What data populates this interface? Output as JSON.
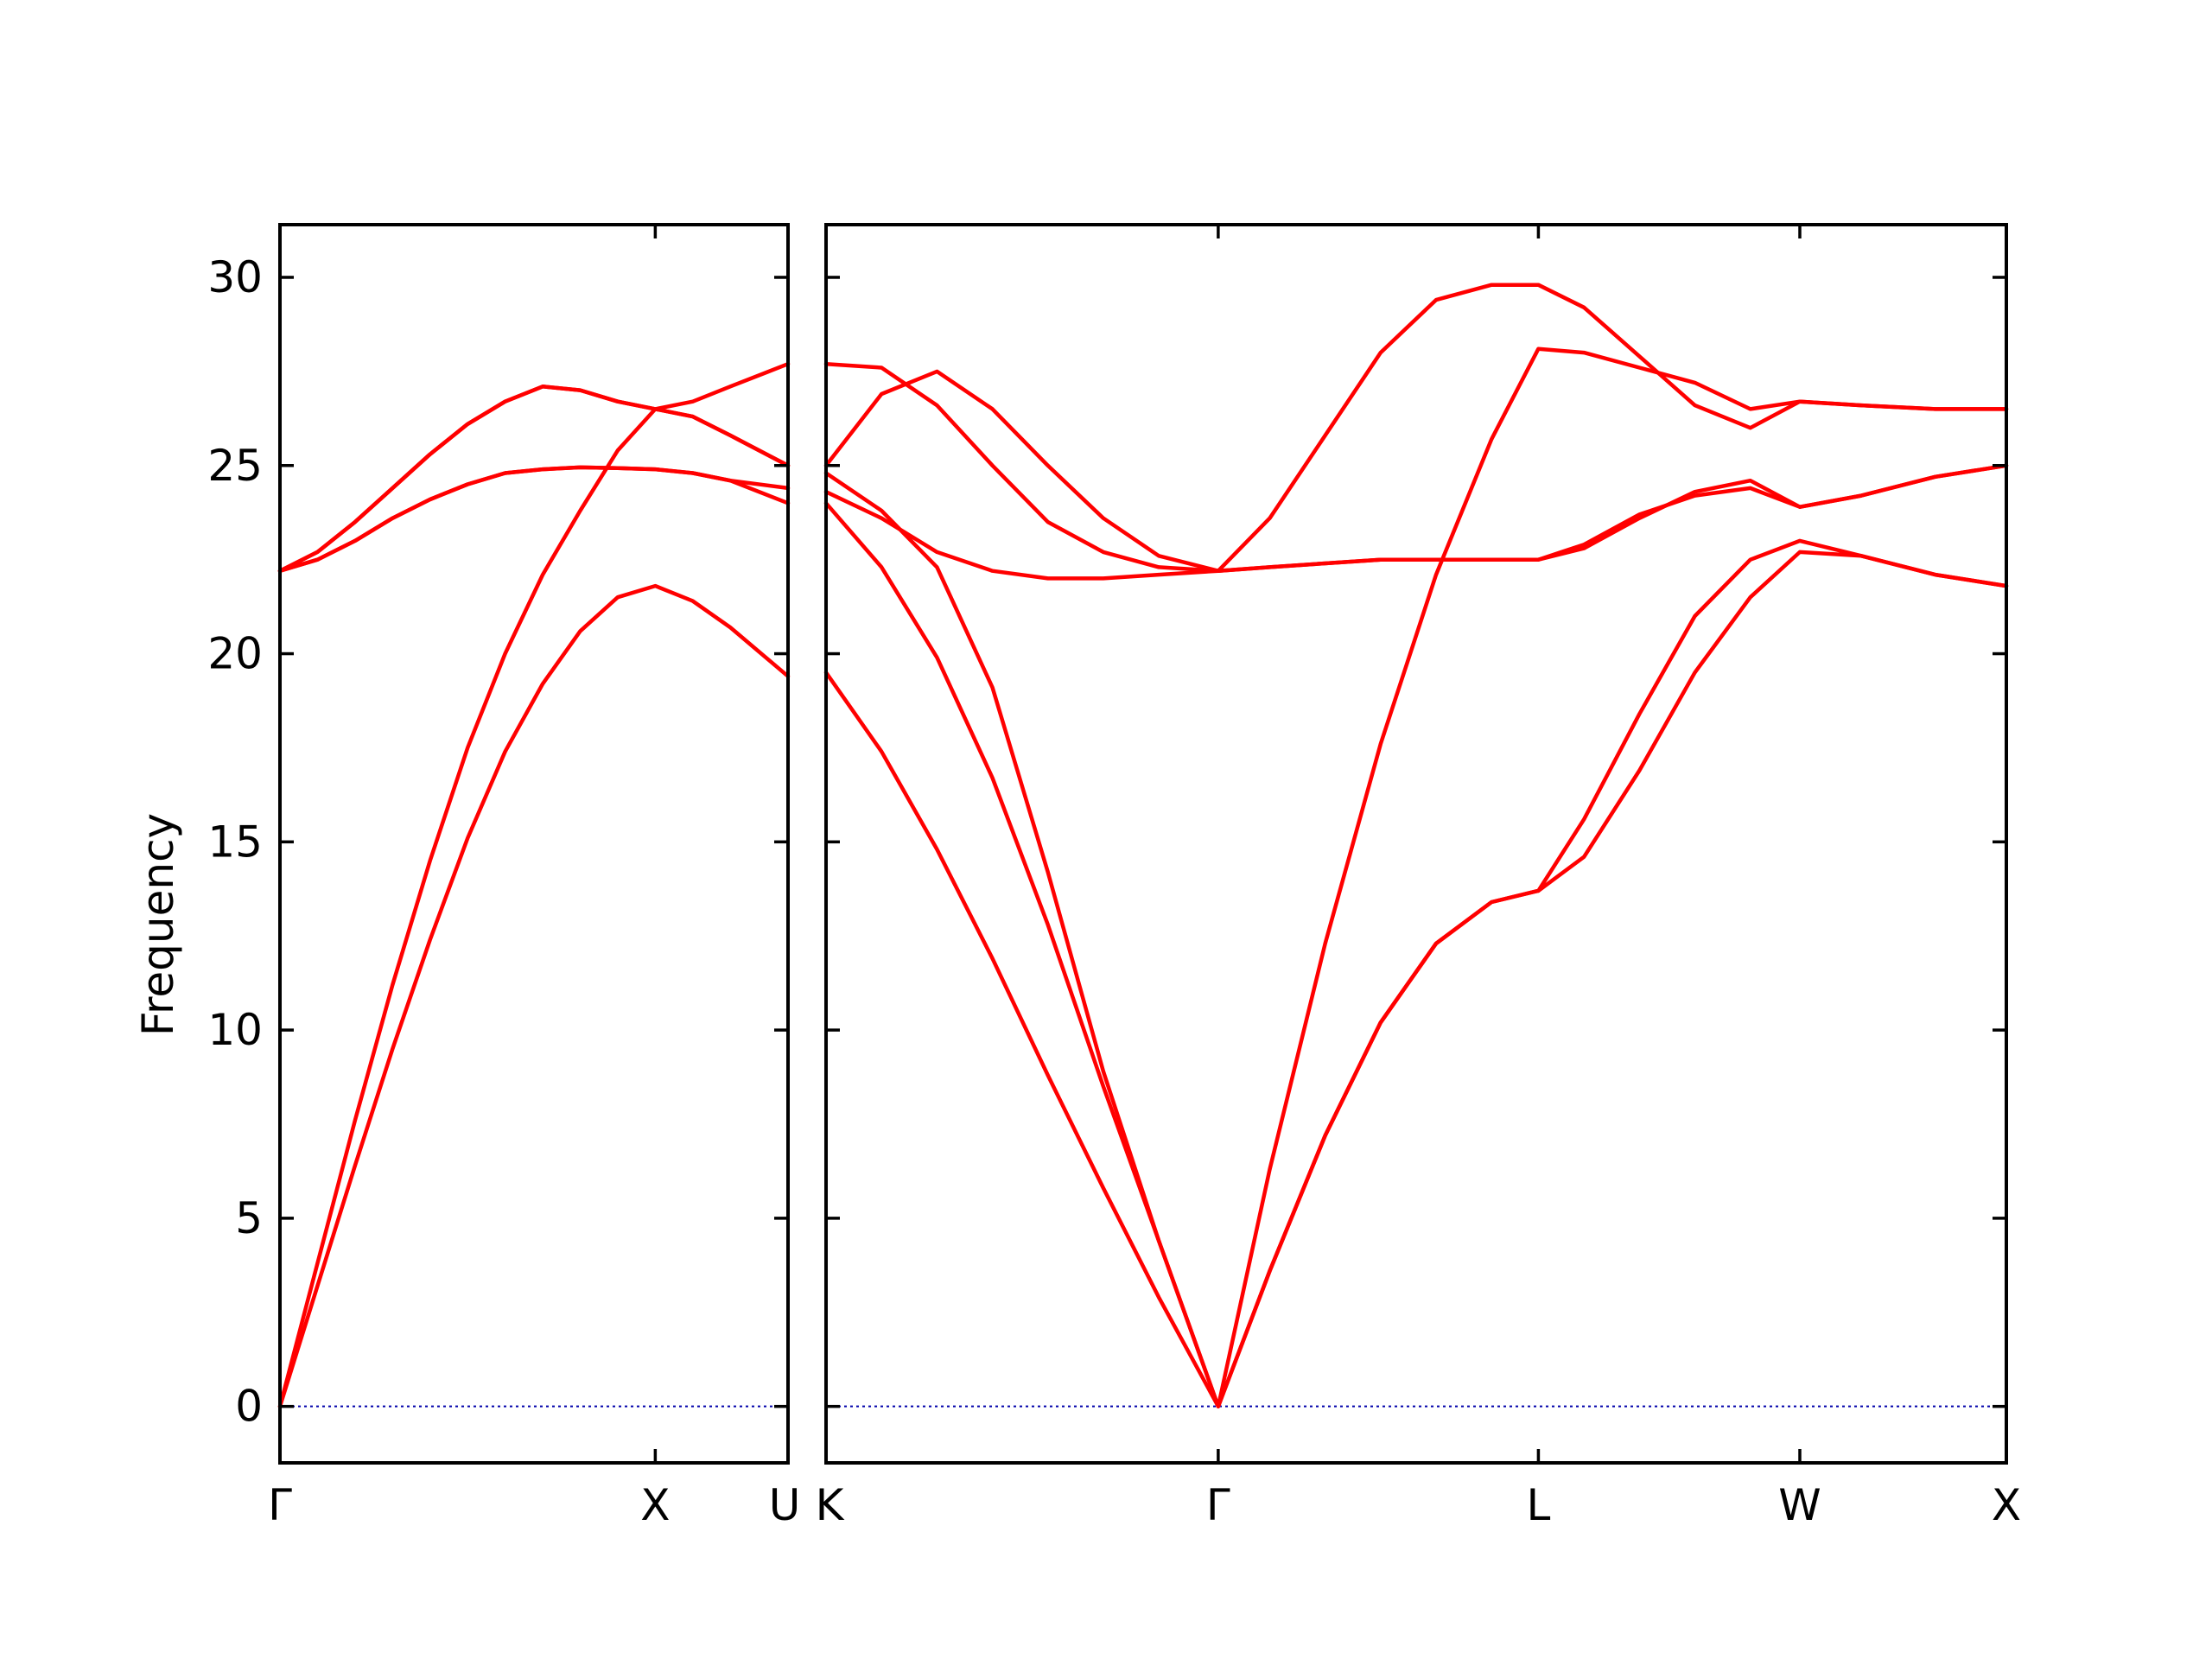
{
  "chart_data": {
    "type": "line",
    "title": "",
    "ylabel": "Frequency",
    "ylim": [
      -1.5,
      31.4
    ],
    "yticks": [
      0,
      5,
      10,
      15,
      20,
      25,
      30
    ],
    "colors": {
      "bands": "#ff0000",
      "zero_line": "#0000aa",
      "frame": "#000000"
    },
    "grid": false,
    "legend": "none",
    "panels": [
      {
        "name": "panel-gamma-x-u",
        "xlim": [
          0,
          1.3537
        ],
        "ticks": [
          {
            "pos": 0.0,
            "label": "Γ"
          },
          {
            "pos": 1.0,
            "label": "X"
          },
          {
            "pos": 1.3537,
            "label": "U"
          }
        ],
        "series": [
          {
            "x": [
              0,
              0.1,
              0.2,
              0.3,
              0.4,
              0.5,
              0.6,
              0.7,
              0.8,
              0.9,
              1.0,
              1.1,
              1.2,
              1.3537
            ],
            "y": [
              0,
              3.2,
              6.4,
              9.5,
              12.4,
              15.1,
              17.4,
              19.2,
              20.6,
              21.5,
              21.8,
              21.4,
              20.7,
              19.4
            ]
          },
          {
            "x": [
              0,
              0.1,
              0.2,
              0.3,
              0.4,
              0.5,
              0.6,
              0.7,
              0.8,
              0.9,
              1.0,
              1.1,
              1.2,
              1.3537
            ],
            "y": [
              0,
              3.8,
              7.6,
              11.2,
              14.5,
              17.5,
              20.0,
              22.1,
              23.8,
              25.4,
              26.5,
              26.3,
              25.8,
              25.0
            ]
          },
          {
            "x": [
              0,
              0.1,
              0.2,
              0.3,
              0.4,
              0.5,
              0.6,
              0.7,
              0.8,
              0.9,
              1.0,
              1.1,
              1.2,
              1.3537
            ],
            "y": [
              22.2,
              22.5,
              23.0,
              23.6,
              24.1,
              24.5,
              24.8,
              24.9,
              24.95,
              24.93,
              24.9,
              24.8,
              24.6,
              24.4
            ]
          },
          {
            "x": [
              0,
              0.1,
              0.2,
              0.3,
              0.4,
              0.5,
              0.6,
              0.7,
              0.8,
              0.9,
              1.0,
              1.1,
              1.2,
              1.3537
            ],
            "y": [
              22.2,
              22.7,
              23.5,
              24.4,
              25.3,
              26.1,
              26.7,
              27.1,
              27.0,
              26.7,
              26.5,
              26.7,
              27.1,
              27.7
            ]
          },
          {
            "x": [
              0,
              0.1,
              0.2,
              0.3,
              0.4,
              0.5,
              0.6,
              0.7,
              0.8,
              0.9,
              1.0,
              1.1,
              1.2,
              1.3537
            ],
            "y": [
              22.2,
              22.5,
              23.0,
              23.6,
              24.1,
              24.5,
              24.8,
              24.9,
              24.95,
              24.93,
              24.9,
              24.8,
              24.6,
              24.0
            ]
          },
          {
            "x": [
              0,
              0.1,
              0.2,
              0.3,
              0.4,
              0.5,
              0.6,
              0.7,
              0.8,
              0.9,
              1.0,
              1.1,
              1.2,
              1.3537
            ],
            "y": [
              22.2,
              22.7,
              23.5,
              24.4,
              25.3,
              26.1,
              26.7,
              27.1,
              27.0,
              26.7,
              26.5,
              26.3,
              25.8,
              25.0
            ]
          }
        ]
      },
      {
        "name": "panel-k-gamma-l-w-x",
        "xlim": [
          0,
          3.1924
        ],
        "ticks": [
          {
            "pos": 0.0,
            "label": "K"
          },
          {
            "pos": 1.0607,
            "label": "Γ"
          },
          {
            "pos": 1.9267,
            "label": "L"
          },
          {
            "pos": 2.6338,
            "label": "W"
          },
          {
            "pos": 3.1924,
            "label": "X"
          }
        ],
        "series": [
          {
            "x": [
              0,
              0.15,
              0.3,
              0.45,
              0.6,
              0.75,
              0.9,
              1.0607,
              1.2,
              1.35,
              1.5,
              1.65,
              1.8,
              1.9267,
              2.05,
              2.2,
              2.35,
              2.5,
              2.6338,
              2.8,
              3.0,
              3.1924
            ],
            "y": [
              19.5,
              17.4,
              14.8,
              11.9,
              8.8,
              5.8,
              2.9,
              0,
              3.6,
              7.2,
              10.2,
              12.3,
              13.4,
              13.7,
              14.6,
              16.9,
              19.5,
              21.5,
              22.7,
              22.6,
              22.1,
              21.8
            ]
          },
          {
            "x": [
              0,
              0.15,
              0.3,
              0.45,
              0.6,
              0.75,
              0.9,
              1.0607,
              1.2,
              1.35,
              1.5,
              1.65,
              1.8,
              1.9267,
              2.05,
              2.2,
              2.35,
              2.5,
              2.6338,
              2.8,
              3.0,
              3.1924
            ],
            "y": [
              24.0,
              22.3,
              19.9,
              16.7,
              12.8,
              8.5,
              4.4,
              0,
              3.6,
              7.2,
              10.2,
              12.3,
              13.4,
              13.7,
              15.6,
              18.4,
              21.0,
              22.5,
              23.0,
              22.6,
              22.1,
              21.8
            ]
          },
          {
            "x": [
              0,
              0.15,
              0.3,
              0.45,
              0.6,
              0.75,
              0.9,
              1.0607,
              1.2,
              1.35,
              1.5,
              1.65,
              1.8,
              1.9267,
              2.05,
              2.2,
              2.35,
              2.5,
              2.6338,
              2.8,
              3.0,
              3.1924
            ],
            "y": [
              24.8,
              23.8,
              22.3,
              19.1,
              14.2,
              8.9,
              4.4,
              0,
              6.3,
              12.3,
              17.6,
              22.1,
              25.7,
              28.1,
              28.0,
              27.6,
              27.2,
              26.5,
              26.7,
              26.6,
              26.5,
              26.5
            ]
          },
          {
            "x": [
              0,
              0.15,
              0.3,
              0.45,
              0.6,
              0.75,
              0.9,
              1.0607,
              1.2,
              1.35,
              1.5,
              1.65,
              1.8,
              1.9267,
              2.05,
              2.2,
              2.35,
              2.5,
              2.6338,
              2.8,
              3.0,
              3.1924
            ],
            "y": [
              24.3,
              23.6,
              22.7,
              22.2,
              22.0,
              22.0,
              22.1,
              22.2,
              22.3,
              22.4,
              22.5,
              22.5,
              22.5,
              22.5,
              22.8,
              23.6,
              24.3,
              24.6,
              23.9,
              24.2,
              24.7,
              25.0
            ]
          },
          {
            "x": [
              0,
              0.15,
              0.3,
              0.45,
              0.6,
              0.75,
              0.9,
              1.0607,
              1.2,
              1.35,
              1.5,
              1.65,
              1.8,
              1.9267,
              2.05,
              2.2,
              2.35,
              2.5,
              2.6338,
              2.8,
              3.0,
              3.1924
            ],
            "y": [
              25.0,
              26.9,
              27.5,
              26.5,
              25.0,
              23.6,
              22.6,
              22.2,
              23.6,
              25.8,
              28.0,
              29.4,
              29.8,
              29.8,
              29.2,
              27.9,
              26.6,
              26.0,
              26.7,
              26.6,
              26.5,
              26.5
            ]
          },
          {
            "x": [
              0,
              0.15,
              0.3,
              0.45,
              0.6,
              0.75,
              0.9,
              1.0607,
              1.2,
              1.35,
              1.5,
              1.65,
              1.8,
              1.9267,
              2.05,
              2.2,
              2.35,
              2.5,
              2.6338,
              2.8,
              3.0,
              3.1924
            ],
            "y": [
              27.7,
              27.6,
              26.6,
              25.0,
              23.5,
              22.7,
              22.3,
              22.2,
              22.3,
              22.4,
              22.5,
              22.5,
              22.5,
              22.5,
              22.9,
              23.7,
              24.2,
              24.4,
              23.9,
              24.2,
              24.7,
              25.0
            ]
          }
        ]
      }
    ]
  }
}
